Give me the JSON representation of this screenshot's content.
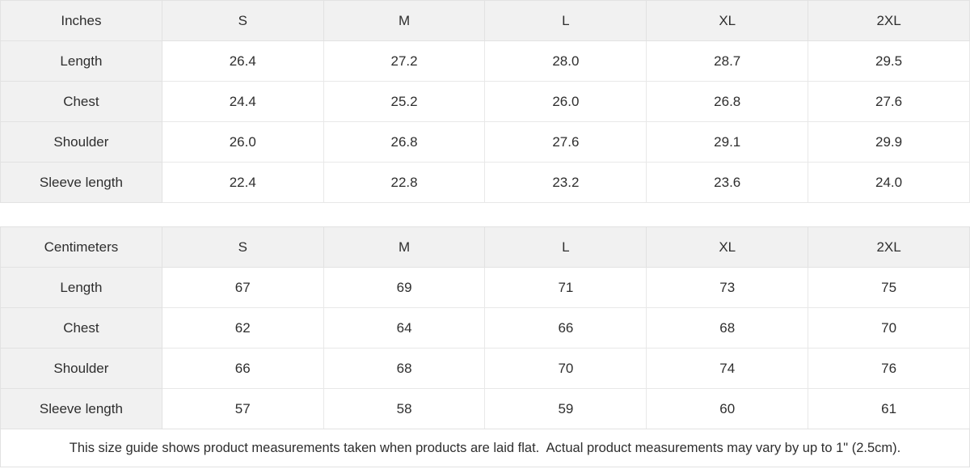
{
  "colors": {
    "header_bg": "#f1f1f1",
    "border": "#e2e2e2",
    "text": "#2e2e2e",
    "cell_bg": "#ffffff"
  },
  "tables": [
    {
      "id": "inches",
      "header": [
        "Inches",
        "S",
        "M",
        "L",
        "XL",
        "2XL"
      ],
      "rows": [
        {
          "label": "Length",
          "values": [
            "26.4",
            "27.2",
            "28.0",
            "28.7",
            "29.5"
          ]
        },
        {
          "label": "Chest",
          "values": [
            "24.4",
            "25.2",
            "26.0",
            "26.8",
            "27.6"
          ]
        },
        {
          "label": "Shoulder",
          "values": [
            "26.0",
            "26.8",
            "27.6",
            "29.1",
            "29.9"
          ]
        },
        {
          "label": "Sleeve length",
          "values": [
            "22.4",
            "22.8",
            "23.2",
            "23.6",
            "24.0"
          ]
        }
      ]
    },
    {
      "id": "centimeters",
      "header": [
        "Centimeters",
        "S",
        "M",
        "L",
        "XL",
        "2XL"
      ],
      "rows": [
        {
          "label": "Length",
          "values": [
            "67",
            "69",
            "71",
            "73",
            "75"
          ]
        },
        {
          "label": "Chest",
          "values": [
            "62",
            "64",
            "66",
            "68",
            "70"
          ]
        },
        {
          "label": "Shoulder",
          "values": [
            "66",
            "68",
            "70",
            "74",
            "76"
          ]
        },
        {
          "label": "Sleeve length",
          "values": [
            "57",
            "58",
            "59",
            "60",
            "61"
          ]
        }
      ]
    }
  ],
  "footer": {
    "note": "This size guide shows product measurements taken when products are laid flat.  Actual product measurements may vary by up to 1\" (2.5cm)."
  }
}
